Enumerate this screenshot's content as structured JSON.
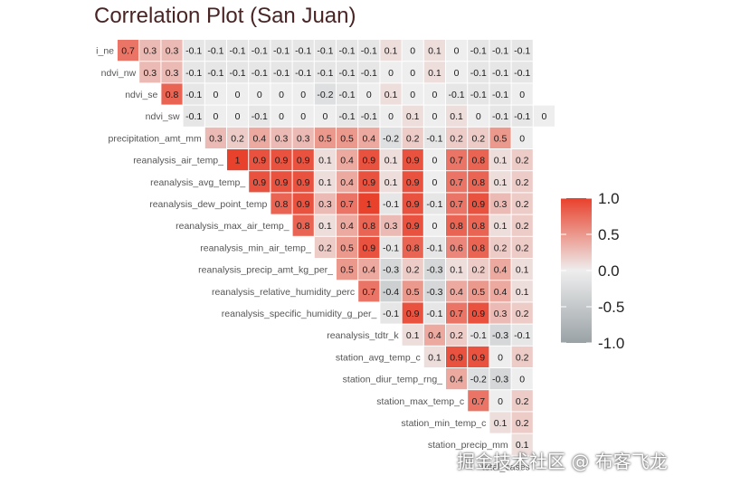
{
  "title": "Correlation Plot (San Juan)",
  "watermark": "掘金技术社区 @ 布客飞龙",
  "chart_data": {
    "type": "heatmap",
    "variables": [
      "ndvi_ne",
      "ndvi_nw",
      "ndvi_se",
      "ndvi_sw",
      "precipitation_amt_mm",
      "reanalysis_air_temp_k",
      "reanalysis_avg_temp_k",
      "reanalysis_dew_point_temp_k",
      "reanalysis_max_air_temp_k",
      "reanalysis_min_air_temp_k",
      "reanalysis_precip_amt_kg_per_m2",
      "reanalysis_relative_humidity_percent",
      "reanalysis_specific_humidity_g_per_kg",
      "reanalysis_tdtr_k",
      "station_avg_temp_c",
      "station_diur_temp_rng_c",
      "station_max_temp_c",
      "station_min_temp_c",
      "station_precip_mm",
      "total_cases"
    ],
    "row_labels": [
      "i_ne",
      "ndvi_nw",
      "ndvi_se",
      "ndvi_sw",
      "precipitation_amt_mm",
      "reanalysis_air_temp_",
      "reanalysis_avg_temp_",
      "reanalysis_dew_point_temp",
      "reanalysis_max_air_temp_",
      "reanalysis_min_air_temp_",
      "reanalysis_precip_amt_kg_per_",
      "reanalysis_relative_humidity_perc",
      "reanalysis_specific_humidity_g_per_",
      "reanalysis_tdtr_k",
      "station_avg_temp_c",
      "station_diur_temp_rng_",
      "station_max_temp_c",
      "station_min_temp_c",
      "station_precip_mm",
      "total_cases"
    ],
    "matrix": [
      [
        0.7,
        0.3,
        0.3,
        -0.1,
        -0.1,
        -0.1,
        -0.1,
        -0.1,
        -0.1,
        -0.1,
        -0.1,
        -0.1,
        0.1,
        0,
        0.1,
        0,
        -0.1,
        -0.1,
        -0.1
      ],
      [
        0.3,
        0.3,
        -0.1,
        -0.1,
        -0.1,
        -0.1,
        -0.1,
        -0.1,
        -0.1,
        -0.1,
        -0.1,
        0,
        0,
        0.1,
        0,
        -0.1,
        -0.1,
        -0.1
      ],
      [
        0.8,
        -0.1,
        0,
        0,
        0,
        0,
        0,
        -0.2,
        -0.1,
        0,
        0.1,
        0,
        0,
        -0.1,
        -0.1,
        -0.1,
        0
      ],
      [
        -0.1,
        0,
        0,
        -0.1,
        0,
        0,
        0,
        -0.1,
        -0.1,
        0,
        0.1,
        0,
        0.1,
        0,
        -0.1,
        -0.1,
        0
      ],
      [
        0.3,
        0.2,
        0.4,
        0.3,
        0.3,
        0.5,
        0.5,
        0.4,
        -0.2,
        0.2,
        -0.1,
        0.2,
        0.2,
        0.5,
        0
      ],
      [
        1,
        0.9,
        0.9,
        0.9,
        0.1,
        0.4,
        0.9,
        0.1,
        0.9,
        0,
        0.7,
        0.8,
        0.1,
        0.2
      ],
      [
        0.9,
        0.9,
        0.9,
        0.1,
        0.4,
        0.9,
        0.1,
        0.9,
        0,
        0.7,
        0.8,
        0.1,
        0.2
      ],
      [
        0.8,
        0.9,
        0.3,
        0.7,
        1,
        -0.1,
        0.9,
        -0.1,
        0.7,
        0.9,
        0.3,
        0.2
      ],
      [
        0.8,
        0.1,
        0.4,
        0.8,
        0.3,
        0.9,
        0,
        0.8,
        0.8,
        0.1,
        0.2
      ],
      [
        0.2,
        0.5,
        0.9,
        -0.1,
        0.8,
        -0.1,
        0.6,
        0.8,
        0.2,
        0.2
      ],
      [
        0.5,
        0.4,
        -0.3,
        0.2,
        -0.3,
        0.1,
        0.2,
        0.4,
        0.1
      ],
      [
        0.7,
        -0.4,
        0.5,
        -0.3,
        0.4,
        0.5,
        0.4,
        0.1
      ],
      [
        -0.1,
        0.9,
        -0.1,
        0.7,
        0.9,
        0.3,
        0.2
      ],
      [
        0.1,
        0.4,
        0.2,
        -0.1,
        -0.3,
        -0.1
      ],
      [
        0.1,
        0.9,
        0.9,
        0,
        0.2
      ],
      [
        0.4,
        -0.2,
        -0.3,
        0
      ],
      [
        0.7,
        0,
        0.2
      ],
      [
        0.1,
        0.2
      ],
      [
        0.1
      ],
      []
    ],
    "value_range": [
      -1,
      1
    ],
    "legend": {
      "ticks": [
        "1.0",
        "0.5",
        "0.0",
        "-0.5",
        "-1.0"
      ],
      "tick_values": [
        1,
        0.5,
        0,
        -0.5,
        -1
      ],
      "position": "right"
    },
    "colors": {
      "high": "#e8412c",
      "mid": "#eeeeee",
      "low": "#9aa2a6"
    }
  }
}
